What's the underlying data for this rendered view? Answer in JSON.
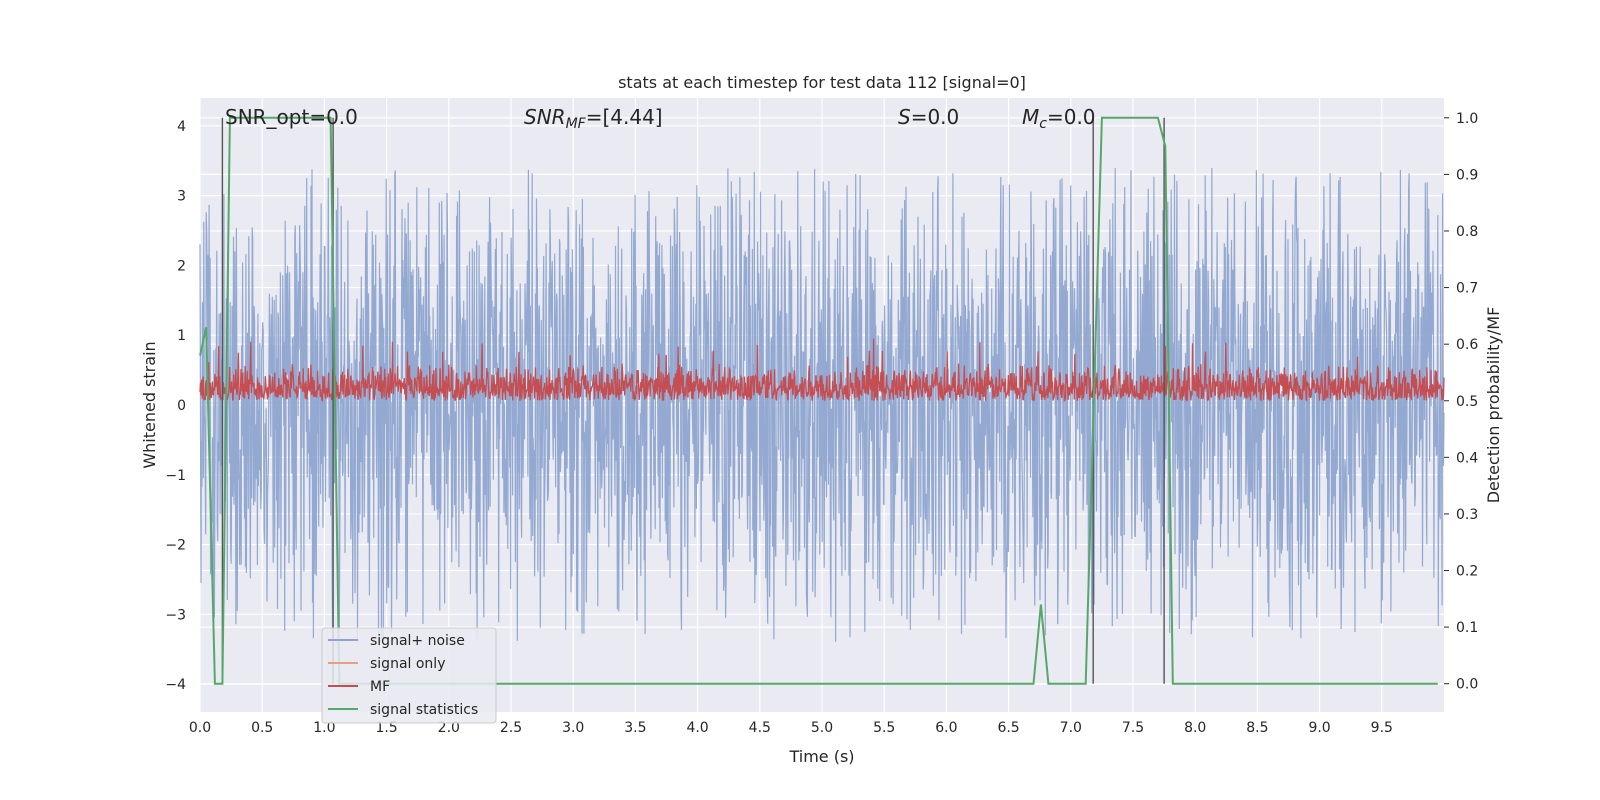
{
  "chart_data": {
    "type": "line",
    "title": "stats at each timestep for test data 112 [signal=0]",
    "xlabel": "Time (s)",
    "ylabel": "Whitened strain",
    "ylabel_right": "Detection probability/MF",
    "xlim": [
      0.0,
      10.0
    ],
    "ylim": [
      -4.4,
      4.4
    ],
    "ylim_right": [
      -0.05,
      1.035
    ],
    "x_ticks": [
      "0.0",
      "0.5",
      "1.0",
      "1.5",
      "2.0",
      "2.5",
      "3.0",
      "3.5",
      "4.0",
      "4.5",
      "5.0",
      "5.5",
      "6.0",
      "6.5",
      "7.0",
      "7.5",
      "8.0",
      "8.5",
      "9.0",
      "9.5"
    ],
    "y_ticks": [
      "−4",
      "−3",
      "−2",
      "−1",
      "0",
      "1",
      "2",
      "3",
      "4"
    ],
    "y_ticks_right": [
      "0.0",
      "0.1",
      "0.2",
      "0.3",
      "0.4",
      "0.5",
      "0.6",
      "0.7",
      "0.8",
      "0.9",
      "1.0"
    ],
    "grid": true,
    "legend_position": "lower-left",
    "annotations": {
      "snr_opt": "SNR_opt=0.0",
      "snr_mf_var": "SNR",
      "snr_mf_sub": "MF",
      "snr_mf_val": "=[4.44]",
      "s_var": "S",
      "s_val": "=0.0",
      "mc_var": "M",
      "mc_sub": "c",
      "mc_val": "=0.0"
    },
    "series": [
      {
        "name": "signal+ noise",
        "color": "#8ea5cf",
        "axis": "left",
        "distribution": {
          "band_low": -1.5,
          "band_high": 1.6,
          "max": 4.0,
          "min": -3.75,
          "duration": 10.0
        }
      },
      {
        "name": "signal only",
        "color": "#e6a07e",
        "axis": "left",
        "values": []
      },
      {
        "name": "MF",
        "color": "#c44e52",
        "axis": "right",
        "distribution": {
          "baseline": 0.5,
          "typical_max": 0.57,
          "peak": 0.61,
          "duration": 10.0
        }
      },
      {
        "name": "signal statistics",
        "color": "#55a868",
        "axis": "right",
        "points": [
          [
            0.0,
            0.58
          ],
          [
            0.05,
            0.63
          ],
          [
            0.12,
            0.0
          ],
          [
            0.18,
            0.0
          ],
          [
            0.24,
            1.0
          ],
          [
            1.05,
            1.0
          ],
          [
            1.12,
            0.0
          ],
          [
            6.7,
            0.0
          ],
          [
            6.76,
            0.14
          ],
          [
            6.82,
            0.0
          ],
          [
            7.12,
            0.0
          ],
          [
            7.25,
            1.0
          ],
          [
            7.7,
            1.0
          ],
          [
            7.76,
            0.95
          ],
          [
            7.82,
            0.0
          ],
          [
            9.95,
            0.0
          ]
        ]
      }
    ],
    "vertical_markers": [
      0.18,
      1.07,
      7.18,
      7.75
    ]
  }
}
